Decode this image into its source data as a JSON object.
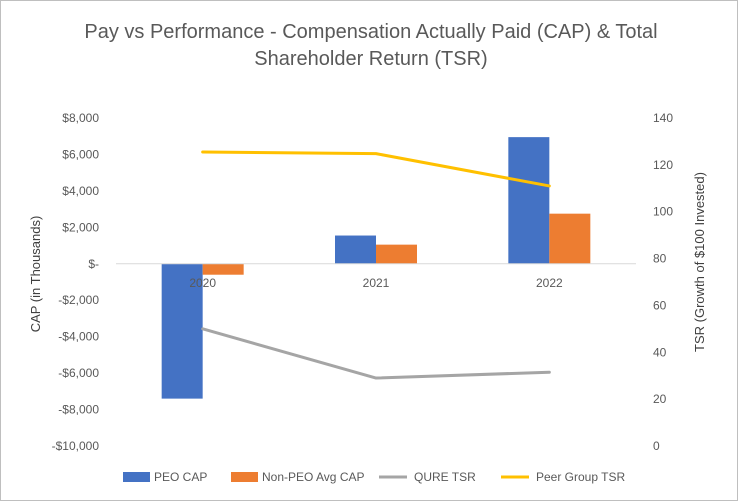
{
  "chart_data": {
    "type": "bar",
    "title_lines": [
      "Pay vs Performance - Compensation Actually Paid (CAP) & Total",
      "Shareholder Return (TSR)"
    ],
    "categories": [
      "2020",
      "2021",
      "2022"
    ],
    "ylabel": "CAP (in Thousands)",
    "y2label": "TSR (Growth of $100 Invested)",
    "ylim": [
      -10000,
      8000
    ],
    "y2lim": [
      0,
      140
    ],
    "y_ticks": [
      "$8,000",
      "$6,000",
      "$4,000",
      "$2,000",
      "$-",
      "-$2,000",
      "-$4,000",
      "-$6,000",
      "-$8,000",
      "-$10,000"
    ],
    "y_tick_values": [
      8000,
      6000,
      4000,
      2000,
      0,
      -2000,
      -4000,
      -6000,
      -8000,
      -10000
    ],
    "y2_ticks": [
      "140",
      "120",
      "100",
      "80",
      "60",
      "40",
      "20",
      "0"
    ],
    "y2_tick_values": [
      140,
      120,
      100,
      80,
      60,
      40,
      20,
      0
    ],
    "bar_series": [
      {
        "name": "PEO CAP",
        "color": "#4472C4",
        "values": [
          -7400,
          1550,
          6950
        ]
      },
      {
        "name": "Non-PEO Avg CAP",
        "color": "#ED7D31",
        "values": [
          -600,
          1050,
          2750
        ]
      }
    ],
    "line_series": [
      {
        "name": "QURE TSR",
        "color": "#A5A5A5",
        "axis": "secondary",
        "values": [
          50,
          29,
          31.5
        ]
      },
      {
        "name": "Peer Group TSR",
        "color": "#FFC000",
        "axis": "secondary",
        "values": [
          125.5,
          124.8,
          111
        ]
      }
    ],
    "legend": [
      "PEO CAP",
      "Non-PEO Avg CAP",
      "QURE TSR",
      "Peer Group TSR"
    ],
    "legend_position": "bottom",
    "grid": false
  }
}
